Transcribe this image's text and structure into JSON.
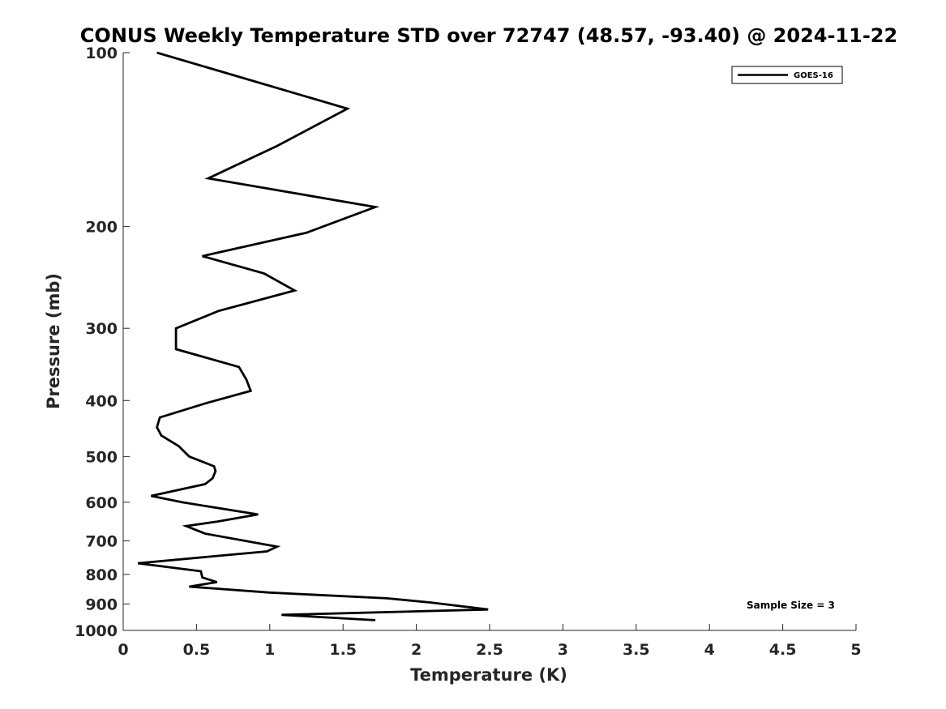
{
  "chart_data": {
    "type": "line",
    "title": "CONUS Weekly Temperature STD over 72747 (48.57, -93.40) @ 2024-11-22",
    "xlabel": "Temperature (K)",
    "ylabel": "Pressure (mb)",
    "xlim": [
      0,
      5
    ],
    "ylim": [
      100,
      1000
    ],
    "y_scale": "log",
    "y_reversed": true,
    "x_ticks": [
      "0",
      "0.5",
      "1",
      "1.5",
      "2",
      "2.5",
      "3",
      "3.5",
      "4",
      "4.5",
      "5"
    ],
    "x_tick_values": [
      0,
      0.5,
      1,
      1.5,
      2,
      2.5,
      3,
      3.5,
      4,
      4.5,
      5
    ],
    "y_ticks": [
      "100",
      "200",
      "300",
      "400",
      "500",
      "600",
      "700",
      "800",
      "900",
      "1000"
    ],
    "y_tick_values": [
      100,
      200,
      300,
      400,
      500,
      600,
      700,
      800,
      900,
      1000
    ],
    "grid": false,
    "legend_position": "top-right",
    "series": [
      {
        "name": "GOES-16",
        "color": "#000000",
        "points": [
          [
            0.23,
            100
          ],
          [
            1.53,
            125
          ],
          [
            1.05,
            145
          ],
          [
            0.58,
            165
          ],
          [
            1.72,
            185
          ],
          [
            1.25,
            205
          ],
          [
            0.54,
            225
          ],
          [
            0.96,
            241
          ],
          [
            1.17,
            258
          ],
          [
            0.65,
            280
          ],
          [
            0.36,
            300
          ],
          [
            0.36,
            326
          ],
          [
            0.79,
            350
          ],
          [
            0.84,
            368
          ],
          [
            0.87,
            385
          ],
          [
            0.57,
            404
          ],
          [
            0.25,
            428
          ],
          [
            0.23,
            445
          ],
          [
            0.26,
            460
          ],
          [
            0.38,
            480
          ],
          [
            0.45,
            500
          ],
          [
            0.62,
            520
          ],
          [
            0.63,
            530
          ],
          [
            0.61,
            545
          ],
          [
            0.56,
            558
          ],
          [
            0.19,
            585
          ],
          [
            0.4,
            600
          ],
          [
            0.92,
            630
          ],
          [
            0.64,
            648
          ],
          [
            0.43,
            660
          ],
          [
            0.56,
            680
          ],
          [
            1.05,
            716
          ],
          [
            0.98,
            730
          ],
          [
            0.1,
            765
          ],
          [
            0.53,
            790
          ],
          [
            0.54,
            810
          ],
          [
            0.64,
            825
          ],
          [
            0.45,
            840
          ],
          [
            1.0,
            860
          ],
          [
            1.8,
            880
          ],
          [
            2.1,
            895
          ],
          [
            2.49,
            920
          ],
          [
            1.08,
            940
          ],
          [
            1.72,
            960
          ]
        ]
      }
    ],
    "annotation": "Sample Size = 3"
  }
}
